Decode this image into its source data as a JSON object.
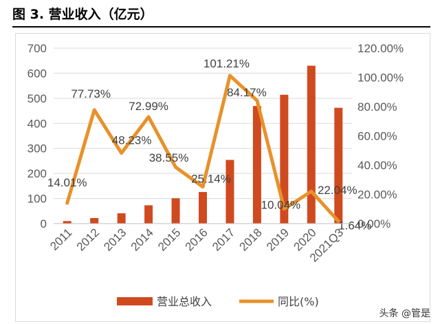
{
  "figure_title": "图 3. 营业收入（亿元）",
  "watermark": "头条 @管是",
  "chart_data": {
    "type": "bar",
    "categories": [
      "2011",
      "2012",
      "2013",
      "2014",
      "2015",
      "2016",
      "2017",
      "2018",
      "2019",
      "2020",
      "2021Q3"
    ],
    "series": [
      {
        "name": "营业总收入",
        "type": "bar",
        "axis": "left",
        "color": "#D04A1F",
        "values": [
          10,
          22,
          41,
          73,
          101,
          126,
          254,
          469,
          514,
          630,
          462
        ]
      },
      {
        "name": "同比(%)",
        "type": "line",
        "axis": "right",
        "color": "#E8912A",
        "values": [
          14.01,
          77.73,
          48.23,
          72.99,
          38.55,
          25.14,
          101.21,
          84.17,
          10.04,
          22.04,
          1.64
        ]
      }
    ],
    "data_labels": [
      "14.01%",
      "77.73%",
      "48.23%",
      "72.99%",
      "38.55%",
      "25.14%",
      "101.21%",
      "84.17%",
      "10.04%",
      "22.04%",
      "1.64%"
    ],
    "y_left": {
      "min": 0,
      "max": 700,
      "ticks": [
        "0",
        "100",
        "200",
        "300",
        "400",
        "500",
        "600",
        "700"
      ]
    },
    "y_right": {
      "min": 0,
      "max": 120,
      "ticks": [
        "0.00%",
        "20.00%",
        "40.00%",
        "60.00%",
        "80.00%",
        "100.00%",
        "120.00%"
      ]
    },
    "grid": true,
    "legend_position": "bottom"
  }
}
